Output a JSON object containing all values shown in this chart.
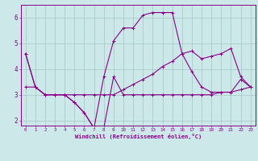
{
  "xlabel": "Windchill (Refroidissement éolien,°C)",
  "background_color": "#cce8e8",
  "grid_color": "#aacccc",
  "line_color": "#880088",
  "hours": [
    0,
    1,
    2,
    3,
    4,
    5,
    6,
    7,
    8,
    9,
    10,
    11,
    12,
    13,
    14,
    15,
    16,
    17,
    18,
    19,
    20,
    21,
    22,
    23
  ],
  "line1": [
    4.6,
    3.3,
    3.0,
    3.0,
    3.0,
    2.7,
    2.3,
    1.7,
    1.7,
    3.7,
    3.0,
    3.0,
    3.0,
    3.0,
    3.0,
    3.0,
    3.0,
    3.0,
    3.0,
    3.0,
    3.1,
    3.1,
    3.2,
    3.3
  ],
  "line2": [
    4.6,
    3.3,
    3.0,
    3.0,
    3.0,
    2.7,
    2.3,
    1.7,
    3.7,
    5.1,
    5.6,
    5.6,
    6.1,
    6.2,
    6.2,
    6.2,
    4.6,
    3.9,
    3.3,
    3.1,
    3.1,
    3.1,
    3.6,
    3.3
  ],
  "line3": [
    3.3,
    3.3,
    3.0,
    3.0,
    3.0,
    3.0,
    3.0,
    3.0,
    3.0,
    3.0,
    3.2,
    3.4,
    3.6,
    3.8,
    4.1,
    4.3,
    4.6,
    4.7,
    4.4,
    4.5,
    4.6,
    4.8,
    3.7,
    3.3
  ],
  "ylim": [
    1.8,
    6.5
  ],
  "xlim": [
    -0.5,
    23.5
  ],
  "yticks": [
    2,
    3,
    4,
    5,
    6
  ],
  "xticks": [
    0,
    1,
    2,
    3,
    4,
    5,
    6,
    7,
    8,
    9,
    10,
    11,
    12,
    13,
    14,
    15,
    16,
    17,
    18,
    19,
    20,
    21,
    22,
    23
  ]
}
